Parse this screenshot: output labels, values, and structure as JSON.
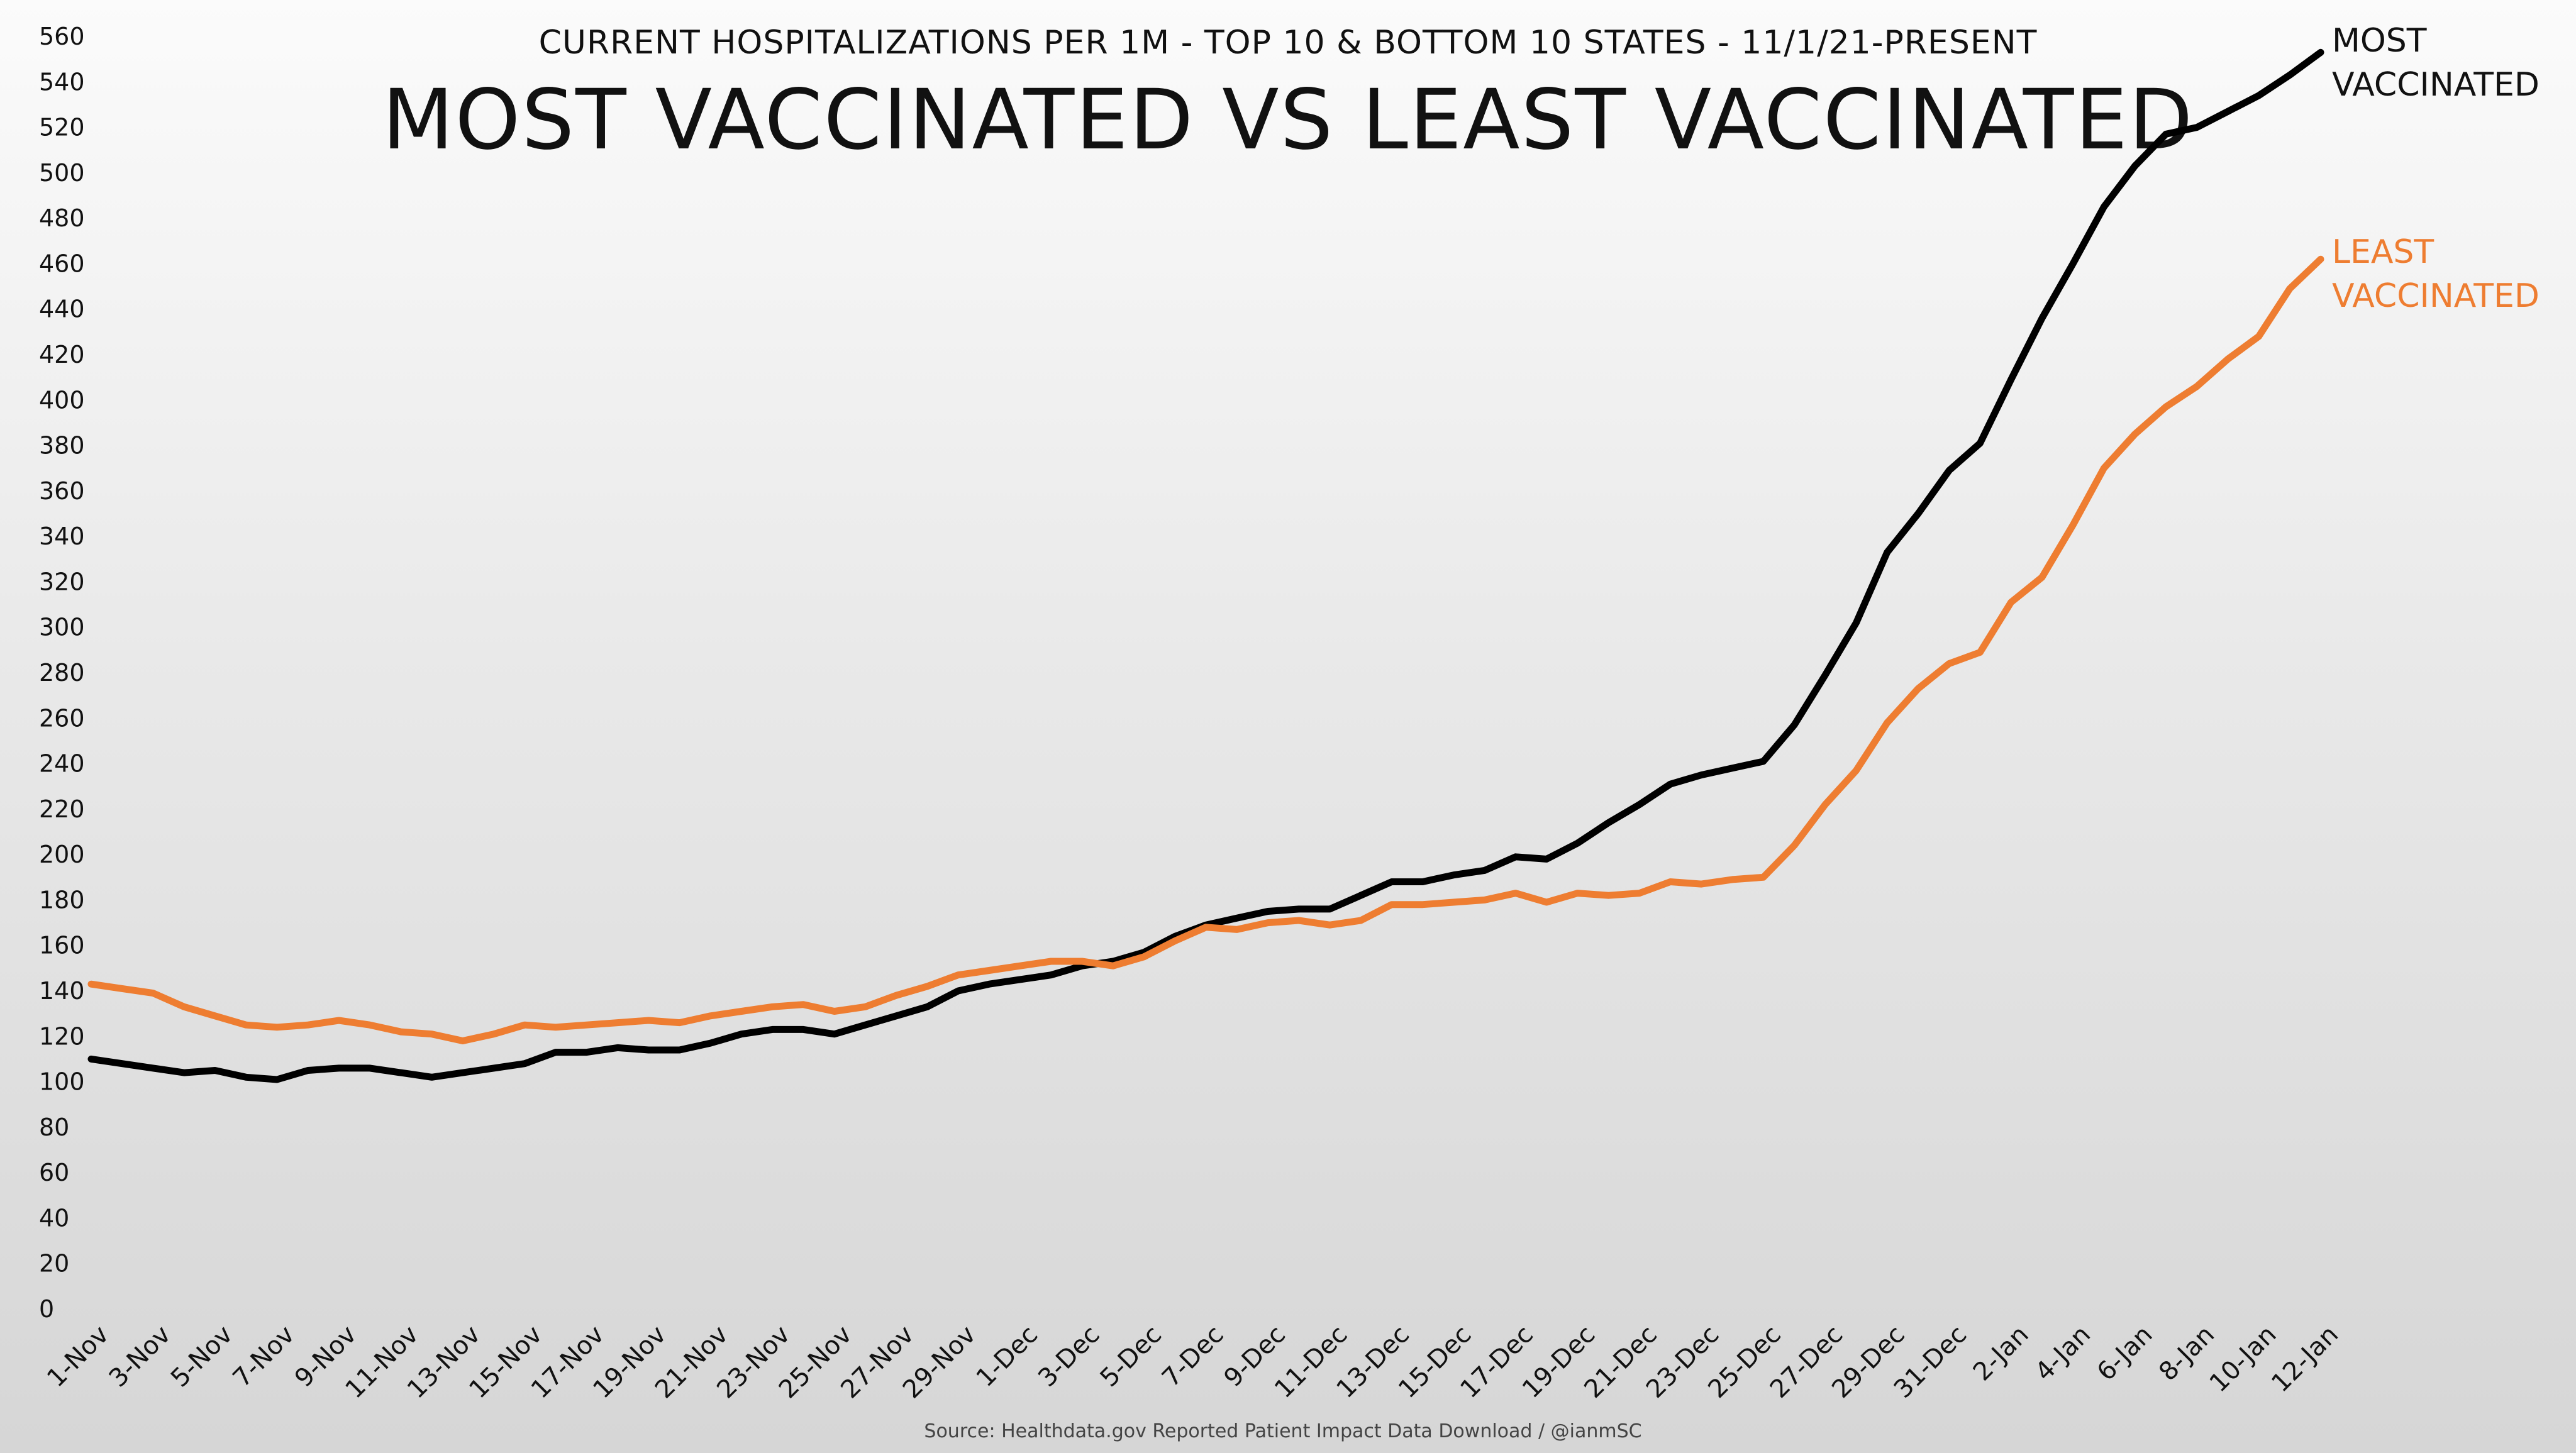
{
  "chart_data": {
    "type": "line",
    "subtitle": "CURRENT HOSPITALIZATIONS PER 1M - TOP 10 & BOTTOM 10 STATES - 11/1/21-PRESENT",
    "title": "MOST VACCINATED VS LEAST VACCINATED",
    "source": "Source: Healthdata.gov Reported Patient Impact Data Download / @ianmSC",
    "ylim": [
      0,
      560
    ],
    "y_ticks": [
      "0",
      "20",
      "40",
      "60",
      "80",
      "100",
      "120",
      "140",
      "160",
      "180",
      "200",
      "220",
      "240",
      "260",
      "280",
      "300",
      "320",
      "340",
      "360",
      "380",
      "400",
      "420",
      "440",
      "460",
      "480",
      "500",
      "520",
      "540",
      "560"
    ],
    "x_ticks": [
      "1-Nov",
      "3-Nov",
      "5-Nov",
      "7-Nov",
      "9-Nov",
      "11-Nov",
      "13-Nov",
      "15-Nov",
      "17-Nov",
      "19-Nov",
      "21-Nov",
      "23-Nov",
      "25-Nov",
      "27-Nov",
      "29-Nov",
      "1-Dec",
      "3-Dec",
      "5-Dec",
      "7-Dec",
      "9-Dec",
      "11-Dec",
      "13-Dec",
      "15-Dec",
      "17-Dec",
      "19-Dec",
      "21-Dec",
      "23-Dec",
      "25-Dec",
      "27-Dec",
      "29-Dec",
      "31-Dec",
      "2-Jan",
      "4-Jan",
      "6-Jan",
      "8-Jan",
      "10-Jan",
      "12-Jan"
    ],
    "grid": false,
    "legend": "inline labels at line ends",
    "series": [
      {
        "name_lines": [
          "MOST",
          "VACCINATED"
        ],
        "color": "#000000",
        "values": [
          110,
          108,
          106,
          104,
          105,
          102,
          101,
          105,
          106,
          106,
          104,
          102,
          104,
          106,
          108,
          113,
          113,
          115,
          114,
          114,
          117,
          121,
          123,
          123,
          121,
          125,
          129,
          133,
          140,
          143,
          145,
          147,
          151,
          153,
          157,
          164,
          169,
          172,
          175,
          176,
          176,
          182,
          188,
          188,
          191,
          193,
          199,
          198,
          205,
          214,
          222,
          231,
          235,
          238,
          241,
          257,
          279,
          302,
          333,
          350,
          369,
          381,
          409,
          436,
          460,
          485,
          503,
          517,
          520,
          527,
          534,
          543,
          553
        ]
      },
      {
        "name_lines": [
          "LEAST",
          "VACCINATED"
        ],
        "color": "#ee7d31",
        "values": [
          143,
          141,
          139,
          133,
          129,
          125,
          124,
          125,
          127,
          125,
          122,
          121,
          118,
          121,
          125,
          124,
          125,
          126,
          127,
          126,
          129,
          131,
          133,
          134,
          131,
          133,
          138,
          142,
          147,
          149,
          151,
          153,
          153,
          151,
          155,
          162,
          168,
          167,
          170,
          171,
          169,
          171,
          178,
          178,
          179,
          180,
          183,
          179,
          183,
          182,
          183,
          188,
          187,
          189,
          190,
          204,
          222,
          237,
          258,
          273,
          284,
          289,
          311,
          322,
          345,
          370,
          385,
          397,
          406,
          418,
          428,
          449,
          462
        ]
      }
    ]
  }
}
